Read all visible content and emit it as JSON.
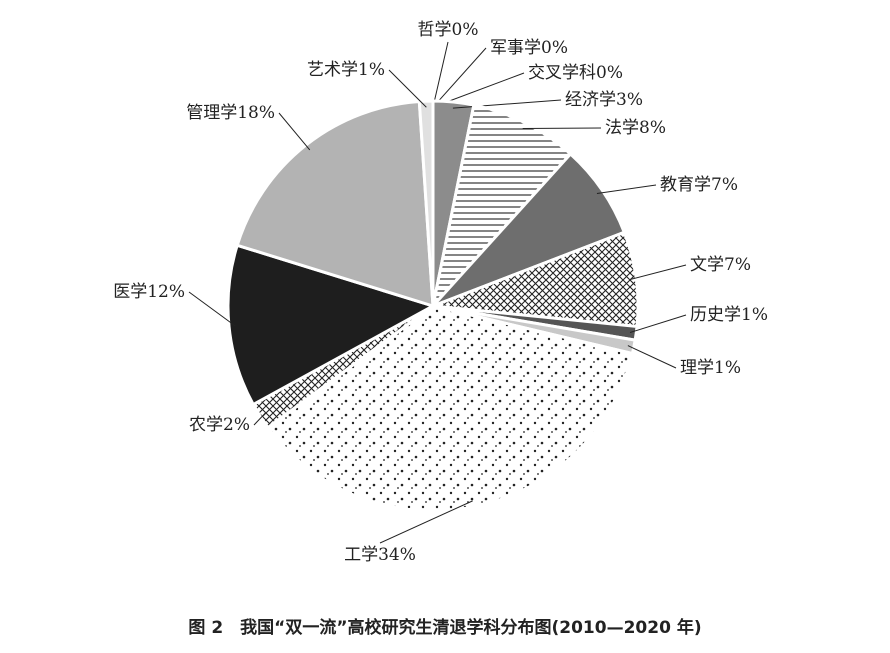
{
  "chart_data": {
    "type": "pie",
    "title": "图 2　我国“双一流”高校研究生清退学科分布图(2010—2020 年)",
    "categories": [
      "哲学",
      "军事学",
      "交叉学科",
      "经济学",
      "法学",
      "教育学",
      "文学",
      "历史学",
      "理学",
      "工学",
      "农学",
      "医学",
      "管理学",
      "艺术学"
    ],
    "values": [
      0,
      0,
      0,
      3,
      8,
      7,
      7,
      1,
      1,
      34,
      2,
      12,
      18,
      1
    ],
    "value_labels": [
      "0%",
      "0%",
      "0%",
      "3%",
      "8%",
      "7%",
      "7%",
      "1%",
      "1%",
      "34%",
      "2%",
      "12%",
      "18%",
      "1%"
    ],
    "fills": [
      "#e8e8e8",
      "#999999",
      "#cccccc",
      "#8c8c8c",
      "hatch",
      "#6e6e6e",
      "crosshatch",
      "#555555",
      "#c8c8c8",
      "dots",
      "crosshatch",
      "#1e1e1e",
      "#b3b3b3",
      "#e0e0e0"
    ]
  }
}
